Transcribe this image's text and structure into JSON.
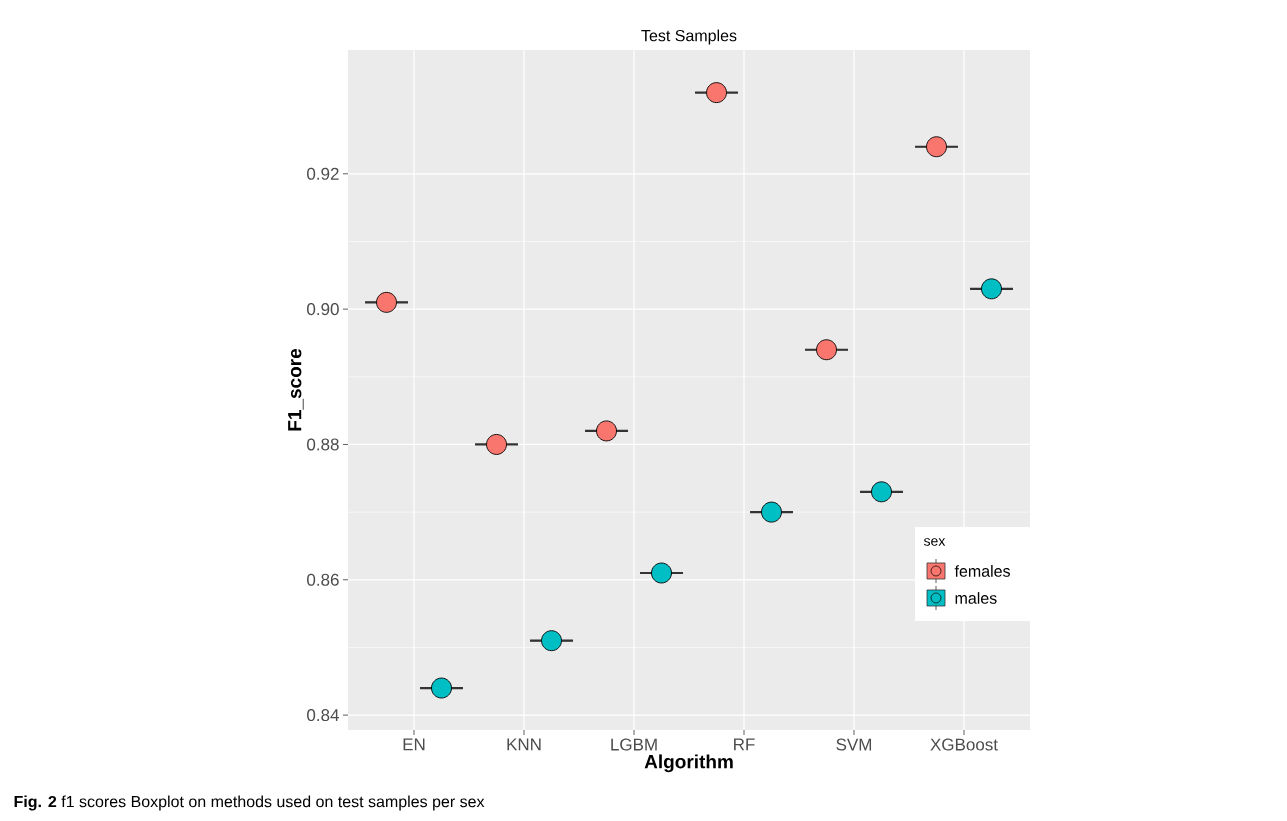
{
  "chart_data": {
    "type": "box",
    "title": "Test Samples",
    "xlabel": "Algorithm",
    "ylabel": "F1_score",
    "legend_title": "sex",
    "categories": [
      "EN",
      "KNN",
      "LGBM",
      "RF",
      "SVM",
      "XGBoost"
    ],
    "series": [
      {
        "color": "#333333",
        "boxes": [
          {
            "low": 0.901,
            "q1": 0.901,
            "median": 0.901,
            "q3": 0.901,
            "high": 0.901
          },
          {
            "low": 0.88,
            "q1": 0.88,
            "median": 0.88,
            "q3": 0.88,
            "high": 0.88
          },
          {
            "low": 0.882,
            "q1": 0.882,
            "median": 0.882,
            "q3": 0.882,
            "high": 0.882
          },
          {
            "low": 0.932,
            "q1": 0.932,
            "median": 0.932,
            "q3": 0.932,
            "high": 0.932
          },
          {
            "low": 0.894,
            "q1": 0.894,
            "median": 0.894,
            "q3": 0.894,
            "high": 0.894
          },
          {
            "low": 0.924,
            "q1": 0.924,
            "median": 0.924,
            "q3": 0.924,
            "high": 0.924
          }
        ]
      },
      {
        "color": "#333333",
        "boxes": [
          {
            "low": 0.844,
            "q1": 0.844,
            "median": 0.844,
            "q3": 0.844,
            "high": 0.844
          },
          {
            "low": 0.851,
            "q1": 0.851,
            "median": 0.851,
            "q3": 0.851,
            "high": 0.851
          },
          {
            "low": 0.861,
            "q1": 0.861,
            "median": 0.861,
            "q3": 0.861,
            "high": 0.861
          },
          {
            "low": 0.87,
            "q1": 0.87,
            "median": 0.87,
            "q3": 0.87,
            "high": 0.87
          },
          {
            "low": 0.873,
            "q1": 0.873,
            "median": 0.873,
            "q3": 0.873,
            "high": 0.873
          },
          {
            "low": 0.903,
            "q1": 0.903,
            "median": 0.903,
            "q3": 0.903,
            "high": 0.903
          }
        ]
      },
      {
        "type": "scatter",
        "name": "females",
        "color": "#f8766d",
        "x": [
          "EN",
          "KNN",
          "LGBM",
          "RF",
          "SVM",
          "XGBoost"
        ],
        "values": [
          0.901,
          0.88,
          0.882,
          0.932,
          0.894,
          0.924
        ]
      },
      {
        "type": "scatter",
        "name": "males",
        "color": "#00bfc4",
        "x": [
          "EN",
          "KNN",
          "LGBM",
          "RF",
          "SVM",
          "XGBoost"
        ],
        "values": [
          0.844,
          0.851,
          0.861,
          0.87,
          0.873,
          0.903
        ]
      }
    ],
    "ylim": [
      0.8378,
      0.9383
    ],
    "yticks": [
      0.84,
      0.86,
      0.88,
      {
        "value": 0.9,
        "label": "0.90"
      },
      0.92
    ],
    "grid": true,
    "legend": "right",
    "marker": "circle",
    "annotations": [
      "**Fig. 2** f1 scores Boxplot on methods used on test samples per sex"
    ]
  }
}
